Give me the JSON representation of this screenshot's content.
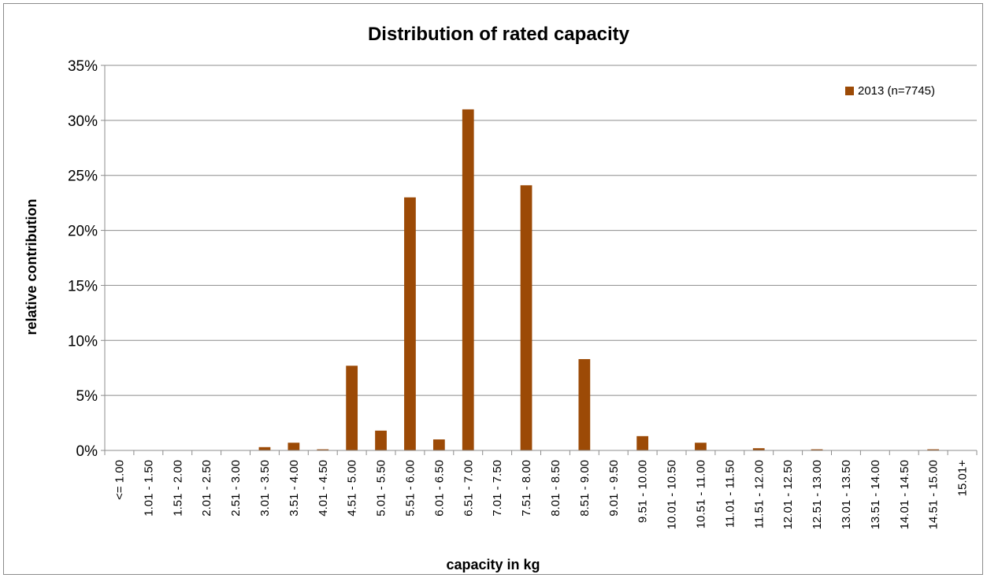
{
  "chart_data": {
    "type": "bar",
    "title": "Distribution of rated capacity",
    "xlabel": "capacity  in kg",
    "ylabel": "relative contribution",
    "ylim": [
      0,
      0.35
    ],
    "yticks": [
      "0%",
      "5%",
      "10%",
      "15%",
      "20%",
      "25%",
      "30%",
      "35%"
    ],
    "grid": true,
    "legend_position": "top-right",
    "categories": [
      "<= 1.00",
      "1.01 - 1.50",
      "1.51 - 2.00",
      "2.01 - 2.50",
      "2.51 - 3.00",
      "3.01 - 3.50",
      "3.51 - 4.00",
      "4.01 - 4.50",
      "4.51 - 5.00",
      "5.01 - 5.50",
      "5.51 - 6.00",
      "6.01 - 6.50",
      "6.51 - 7.00",
      "7.01 - 7.50",
      "7.51 - 8.00",
      "8.01 - 8.50",
      "8.51 - 9.00",
      "9.01 - 9.50",
      "9.51 - 10.00",
      "10.01 - 10.50",
      "10.51 - 11.00",
      "11.01 - 11.50",
      "11.51 - 12.00",
      "12.01 - 12.50",
      "12.51 - 13.00",
      "13.01 - 13.50",
      "13.51 - 14.00",
      "14.01 - 14.50",
      "14.51 - 15.00",
      "15.01+"
    ],
    "series": [
      {
        "name": "2013 (n=7745)",
        "color": "#9C4A06",
        "values": [
          0,
          0,
          0,
          0,
          0,
          0.003,
          0.007,
          0.001,
          0.077,
          0.018,
          0.23,
          0.01,
          0.31,
          0,
          0.241,
          0,
          0.083,
          0,
          0.013,
          0,
          0.007,
          0,
          0.002,
          0,
          0.001,
          0,
          0,
          0,
          0.001,
          0
        ]
      }
    ]
  }
}
